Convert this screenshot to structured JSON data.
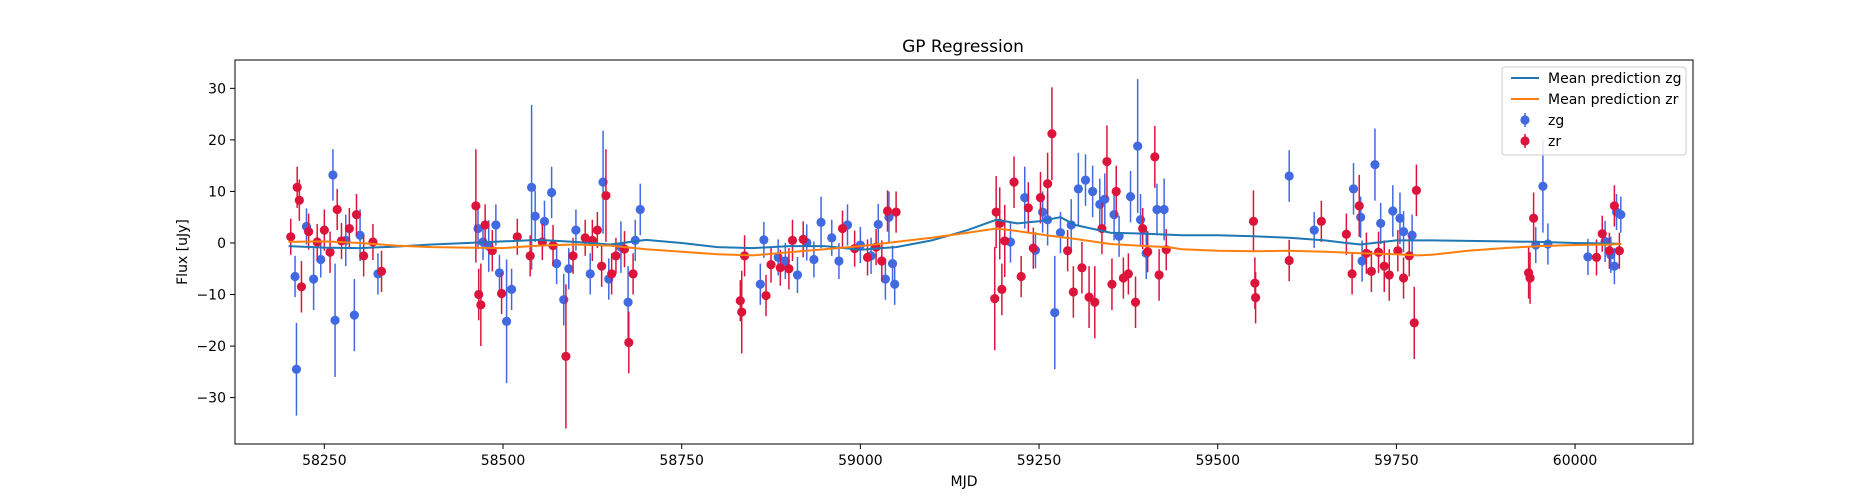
{
  "chart_data": {
    "type": "scatter",
    "title": "GP Regression",
    "xlabel": "MJD",
    "ylabel": "Flux [uJy]",
    "xlim": [
      58125,
      60165
    ],
    "ylim": [
      -39,
      35.5
    ],
    "xticks": [
      58250,
      58500,
      58750,
      59000,
      59250,
      59500,
      59750,
      60000
    ],
    "yticks": [
      -30,
      -20,
      -10,
      0,
      10,
      20,
      30
    ],
    "grid": false,
    "legend_position": "top-right",
    "lines": [
      {
        "name": "Mean prediction zg",
        "color": "#1f77b4",
        "x": [
          58200,
          58250,
          58300,
          58350,
          58400,
          58450,
          58500,
          58550,
          58600,
          58650,
          58700,
          58750,
          58800,
          58850,
          58900,
          58950,
          59000,
          59050,
          59100,
          59150,
          59190,
          59220,
          59250,
          59280,
          59300,
          59350,
          59400,
          59450,
          59500,
          59550,
          59600,
          59650,
          59680,
          59700,
          59750,
          59800,
          59850,
          59900,
          59950,
          60000,
          60050,
          60065
        ],
        "y": [
          -0.6,
          -0.9,
          -1.0,
          -0.7,
          -0.3,
          0.0,
          0.3,
          0.6,
          0.2,
          -0.3,
          0.6,
          0.0,
          -0.8,
          -1.0,
          -0.6,
          -0.6,
          -1.3,
          -0.8,
          0.5,
          2.5,
          4.5,
          3.8,
          4.2,
          5.0,
          3.5,
          2.0,
          1.8,
          1.5,
          1.5,
          1.3,
          1.0,
          0.5,
          0.0,
          -0.3,
          0.5,
          0.5,
          0.4,
          0.3,
          0.2,
          0.0,
          -0.1,
          -0.2
        ]
      },
      {
        "name": "Mean prediction zr",
        "color": "#ff7f0e",
        "x": [
          58200,
          58250,
          58300,
          58350,
          58400,
          58450,
          58500,
          58550,
          58600,
          58650,
          58700,
          58750,
          58800,
          58850,
          58900,
          58950,
          59000,
          59050,
          59100,
          59150,
          59190,
          59220,
          59260,
          59300,
          59350,
          59400,
          59430,
          59450,
          59500,
          59550,
          59600,
          59650,
          59700,
          59750,
          59780,
          59800,
          59850,
          59900,
          59950,
          60000,
          60050,
          60065
        ],
        "y": [
          0.2,
          0.3,
          0.0,
          -0.5,
          -0.8,
          -0.9,
          -1.0,
          -0.5,
          -0.3,
          -0.5,
          -1.2,
          -1.7,
          -2.2,
          -2.4,
          -1.8,
          -1.2,
          -0.6,
          0.2,
          1.0,
          2.0,
          2.8,
          2.3,
          1.5,
          0.8,
          -0.2,
          -0.6,
          -0.8,
          -1.2,
          -1.5,
          -1.6,
          -1.5,
          -1.7,
          -2.0,
          -2.2,
          -2.4,
          -2.3,
          -1.5,
          -1.0,
          -0.6,
          -0.4,
          -0.3,
          -0.2
        ]
      }
    ],
    "series": [
      {
        "name": "zg",
        "color": "#4169e1",
        "points": [
          [
            58209,
            -6.5,
            4
          ],
          [
            58211,
            -24.5,
            9
          ],
          [
            58225,
            3.2,
            3.5
          ],
          [
            58235,
            -7,
            6
          ],
          [
            58245,
            -3.2,
            3.5
          ],
          [
            58262,
            13.2,
            5
          ],
          [
            58265,
            -15,
            11
          ],
          [
            58280,
            0.5,
            5
          ],
          [
            58292,
            -14,
            7
          ],
          [
            58300,
            1.5,
            5
          ],
          [
            58325,
            -6,
            4
          ],
          [
            58465,
            2.8,
            4
          ],
          [
            58472,
            0.2,
            3.5
          ],
          [
            58480,
            -0.6,
            5
          ],
          [
            58490,
            3.5,
            4
          ],
          [
            58495,
            -5.8,
            3.5
          ],
          [
            58505,
            -15.2,
            12
          ],
          [
            58512,
            -9,
            4
          ],
          [
            58540,
            10.8,
            16
          ],
          [
            58545,
            5.2,
            5
          ],
          [
            58558,
            4.2,
            4
          ],
          [
            58568,
            9.8,
            5
          ],
          [
            58575,
            -4,
            4
          ],
          [
            58585,
            -11,
            5
          ],
          [
            58592,
            -5,
            4
          ],
          [
            58602,
            2.5,
            4
          ],
          [
            58622,
            -6,
            4
          ],
          [
            58640,
            11.8,
            10
          ],
          [
            58648,
            -7,
            4
          ],
          [
            58665,
            -0.8,
            5
          ],
          [
            58675,
            -11.5,
            7
          ],
          [
            58685,
            0.5,
            4
          ],
          [
            58692,
            6.5,
            5
          ],
          [
            58860,
            -8,
            4
          ],
          [
            58865,
            0.6,
            3.5
          ],
          [
            58885,
            -2.8,
            3.5
          ],
          [
            58895,
            -3.5,
            3.5
          ],
          [
            58912,
            -6.2,
            3.5
          ],
          [
            58925,
            0.1,
            3.5
          ],
          [
            58935,
            -3.2,
            3.5
          ],
          [
            58945,
            4,
            5
          ],
          [
            58960,
            1,
            3.5
          ],
          [
            58970,
            -3.5,
            3.5
          ],
          [
            58982,
            3.5,
            4
          ],
          [
            59000,
            -0.4,
            3.5
          ],
          [
            59015,
            -2.5,
            3.5
          ],
          [
            59025,
            3.6,
            4
          ],
          [
            59035,
            -7,
            4
          ],
          [
            59040,
            5,
            5
          ],
          [
            59045,
            -4,
            3.5
          ],
          [
            59048,
            -8,
            4
          ],
          [
            59210,
            0.2,
            4
          ],
          [
            59230,
            8.8,
            6
          ],
          [
            59245,
            -1.4,
            3.5
          ],
          [
            59255,
            6,
            4
          ],
          [
            59262,
            4.5,
            5
          ],
          [
            59272,
            -13.5,
            11
          ],
          [
            59280,
            2,
            4
          ],
          [
            59295,
            3.5,
            5
          ],
          [
            59305,
            10.5,
            7
          ],
          [
            59315,
            12.2,
            5
          ],
          [
            59325,
            10,
            5
          ],
          [
            59335,
            7.5,
            5
          ],
          [
            59342,
            8.5,
            5
          ],
          [
            59355,
            5.5,
            5
          ],
          [
            59362,
            1.3,
            4
          ],
          [
            59378,
            9,
            5
          ],
          [
            59388,
            18.8,
            13
          ],
          [
            59392,
            4.5,
            5
          ],
          [
            59400,
            -2,
            5
          ],
          [
            59415,
            6.5,
            5
          ],
          [
            59425,
            6.5,
            6
          ],
          [
            59600,
            13,
            5
          ],
          [
            59635,
            2.5,
            3.5
          ],
          [
            59690,
            10.5,
            5
          ],
          [
            59700,
            5,
            4
          ],
          [
            59702,
            -3.5,
            4
          ],
          [
            59720,
            15.2,
            7
          ],
          [
            59728,
            3.8,
            4
          ],
          [
            59745,
            6.2,
            5
          ],
          [
            59755,
            4.8,
            5
          ],
          [
            59760,
            2.2,
            4
          ],
          [
            59772,
            1.5,
            4
          ],
          [
            59945,
            -0.4,
            3.5
          ],
          [
            59955,
            11,
            9
          ],
          [
            59962,
            -0.2,
            4
          ],
          [
            60018,
            -2.7,
            3.5
          ],
          [
            60042,
            0.3,
            4
          ],
          [
            60050,
            -2.3,
            3.5
          ],
          [
            60055,
            -4.5,
            3.5
          ],
          [
            60058,
            6,
            3.5
          ],
          [
            60064,
            5.5,
            3.5
          ]
        ]
      },
      {
        "name": "zr",
        "color": "#dc143c",
        "points": [
          [
            58203,
            1.2,
            3.5
          ],
          [
            58212,
            10.8,
            4
          ],
          [
            58215,
            8.3,
            4
          ],
          [
            58218,
            -8.5,
            5
          ],
          [
            58228,
            2.2,
            3.5
          ],
          [
            58240,
            0.2,
            3.5
          ],
          [
            58250,
            2.5,
            4
          ],
          [
            58258,
            -1.8,
            4
          ],
          [
            58268,
            6.5,
            4
          ],
          [
            58274,
            0.4,
            3.5
          ],
          [
            58285,
            2.8,
            4
          ],
          [
            58295,
            5.5,
            4
          ],
          [
            58305,
            -2.5,
            4
          ],
          [
            58318,
            0.2,
            3.5
          ],
          [
            58330,
            -5.5,
            4
          ],
          [
            58462,
            7.2,
            11
          ],
          [
            58466,
            -10,
            5
          ],
          [
            58469,
            -12,
            8
          ],
          [
            58475,
            3.5,
            4
          ],
          [
            58485,
            -1.5,
            4
          ],
          [
            58498,
            -9.8,
            4
          ],
          [
            58520,
            1.2,
            3.5
          ],
          [
            58538,
            -2.5,
            4
          ],
          [
            58555,
            0.2,
            3.5
          ],
          [
            58570,
            -0.5,
            4
          ],
          [
            58588,
            -22,
            14
          ],
          [
            58598,
            -2.5,
            3.5
          ],
          [
            58615,
            1,
            3.5
          ],
          [
            58625,
            0.5,
            4
          ],
          [
            58632,
            2.5,
            3.5
          ],
          [
            58638,
            -4.5,
            4
          ],
          [
            58644,
            9.2,
            9
          ],
          [
            58652,
            -6,
            4
          ],
          [
            58658,
            -2.5,
            3.5
          ],
          [
            58670,
            -1.2,
            3.5
          ],
          [
            58676,
            -19.3,
            6
          ],
          [
            58682,
            -6,
            4
          ],
          [
            58832,
            -11.2,
            4
          ],
          [
            58834,
            -13.4,
            8
          ],
          [
            58838,
            -2.5,
            4
          ],
          [
            58868,
            -10.2,
            4
          ],
          [
            58875,
            -4.2,
            3.5
          ],
          [
            58888,
            -4.8,
            3.5
          ],
          [
            58900,
            -5,
            4
          ],
          [
            58905,
            0.5,
            4
          ],
          [
            58920,
            0.7,
            3.5
          ],
          [
            58975,
            2.8,
            3.5
          ],
          [
            58992,
            -1.1,
            3.5
          ],
          [
            59010,
            -2.8,
            3.5
          ],
          [
            59022,
            -0.8,
            3.5
          ],
          [
            59030,
            -3.5,
            4
          ],
          [
            59038,
            6.2,
            4
          ],
          [
            59050,
            6,
            4
          ],
          [
            59188,
            -10.8,
            10
          ],
          [
            59190,
            6,
            7
          ],
          [
            59195,
            3.8,
            7
          ],
          [
            59198,
            -9,
            5
          ],
          [
            59202,
            0.4,
            7
          ],
          [
            59215,
            11.8,
            5
          ],
          [
            59225,
            -6.5,
            4
          ],
          [
            59235,
            6.8,
            5
          ],
          [
            59242,
            -1,
            4
          ],
          [
            59252,
            8.8,
            5
          ],
          [
            59262,
            11.5,
            6
          ],
          [
            59268,
            21.2,
            9
          ],
          [
            59290,
            -1.5,
            4
          ],
          [
            59298,
            -9.5,
            5
          ],
          [
            59310,
            -4.8,
            5
          ],
          [
            59320,
            -10.5,
            6
          ],
          [
            59328,
            -11.5,
            7
          ],
          [
            59338,
            2.8,
            5
          ],
          [
            59345,
            15.8,
            7
          ],
          [
            59352,
            -8,
            5
          ],
          [
            59358,
            10,
            5
          ],
          [
            59368,
            -6.8,
            4
          ],
          [
            59375,
            -6,
            4
          ],
          [
            59385,
            -11.5,
            5
          ],
          [
            59395,
            2.8,
            4
          ],
          [
            59402,
            -1.7,
            4
          ],
          [
            59412,
            16.7,
            6
          ],
          [
            59418,
            -6.2,
            5
          ],
          [
            59428,
            -1.3,
            4
          ],
          [
            59550,
            4.2,
            6
          ],
          [
            59552,
            -7.8,
            5
          ],
          [
            59553,
            -10.6,
            5
          ],
          [
            59600,
            -3.4,
            4
          ],
          [
            59645,
            4.2,
            4
          ],
          [
            59680,
            1.7,
            4
          ],
          [
            59688,
            -6,
            4
          ],
          [
            59698,
            7.2,
            6
          ],
          [
            59708,
            -2,
            4
          ],
          [
            59715,
            -5.5,
            4
          ],
          [
            59725,
            -1.8,
            4
          ],
          [
            59733,
            -4.5,
            5
          ],
          [
            59740,
            -6.2,
            5
          ],
          [
            59752,
            -1.5,
            4
          ],
          [
            59760,
            -6.8,
            4
          ],
          [
            59768,
            -2.5,
            4
          ],
          [
            59775,
            -15.5,
            7
          ],
          [
            59778,
            10.2,
            5
          ],
          [
            59935,
            -5.8,
            5
          ],
          [
            59937,
            -6.8,
            5
          ],
          [
            59942,
            4.8,
            5
          ],
          [
            60030,
            -2.8,
            3.5
          ],
          [
            60038,
            1.8,
            3.5
          ],
          [
            60048,
            -1.5,
            3.5
          ],
          [
            60055,
            7.2,
            4
          ],
          [
            60062,
            -1.5,
            3.5
          ]
        ]
      }
    ]
  }
}
